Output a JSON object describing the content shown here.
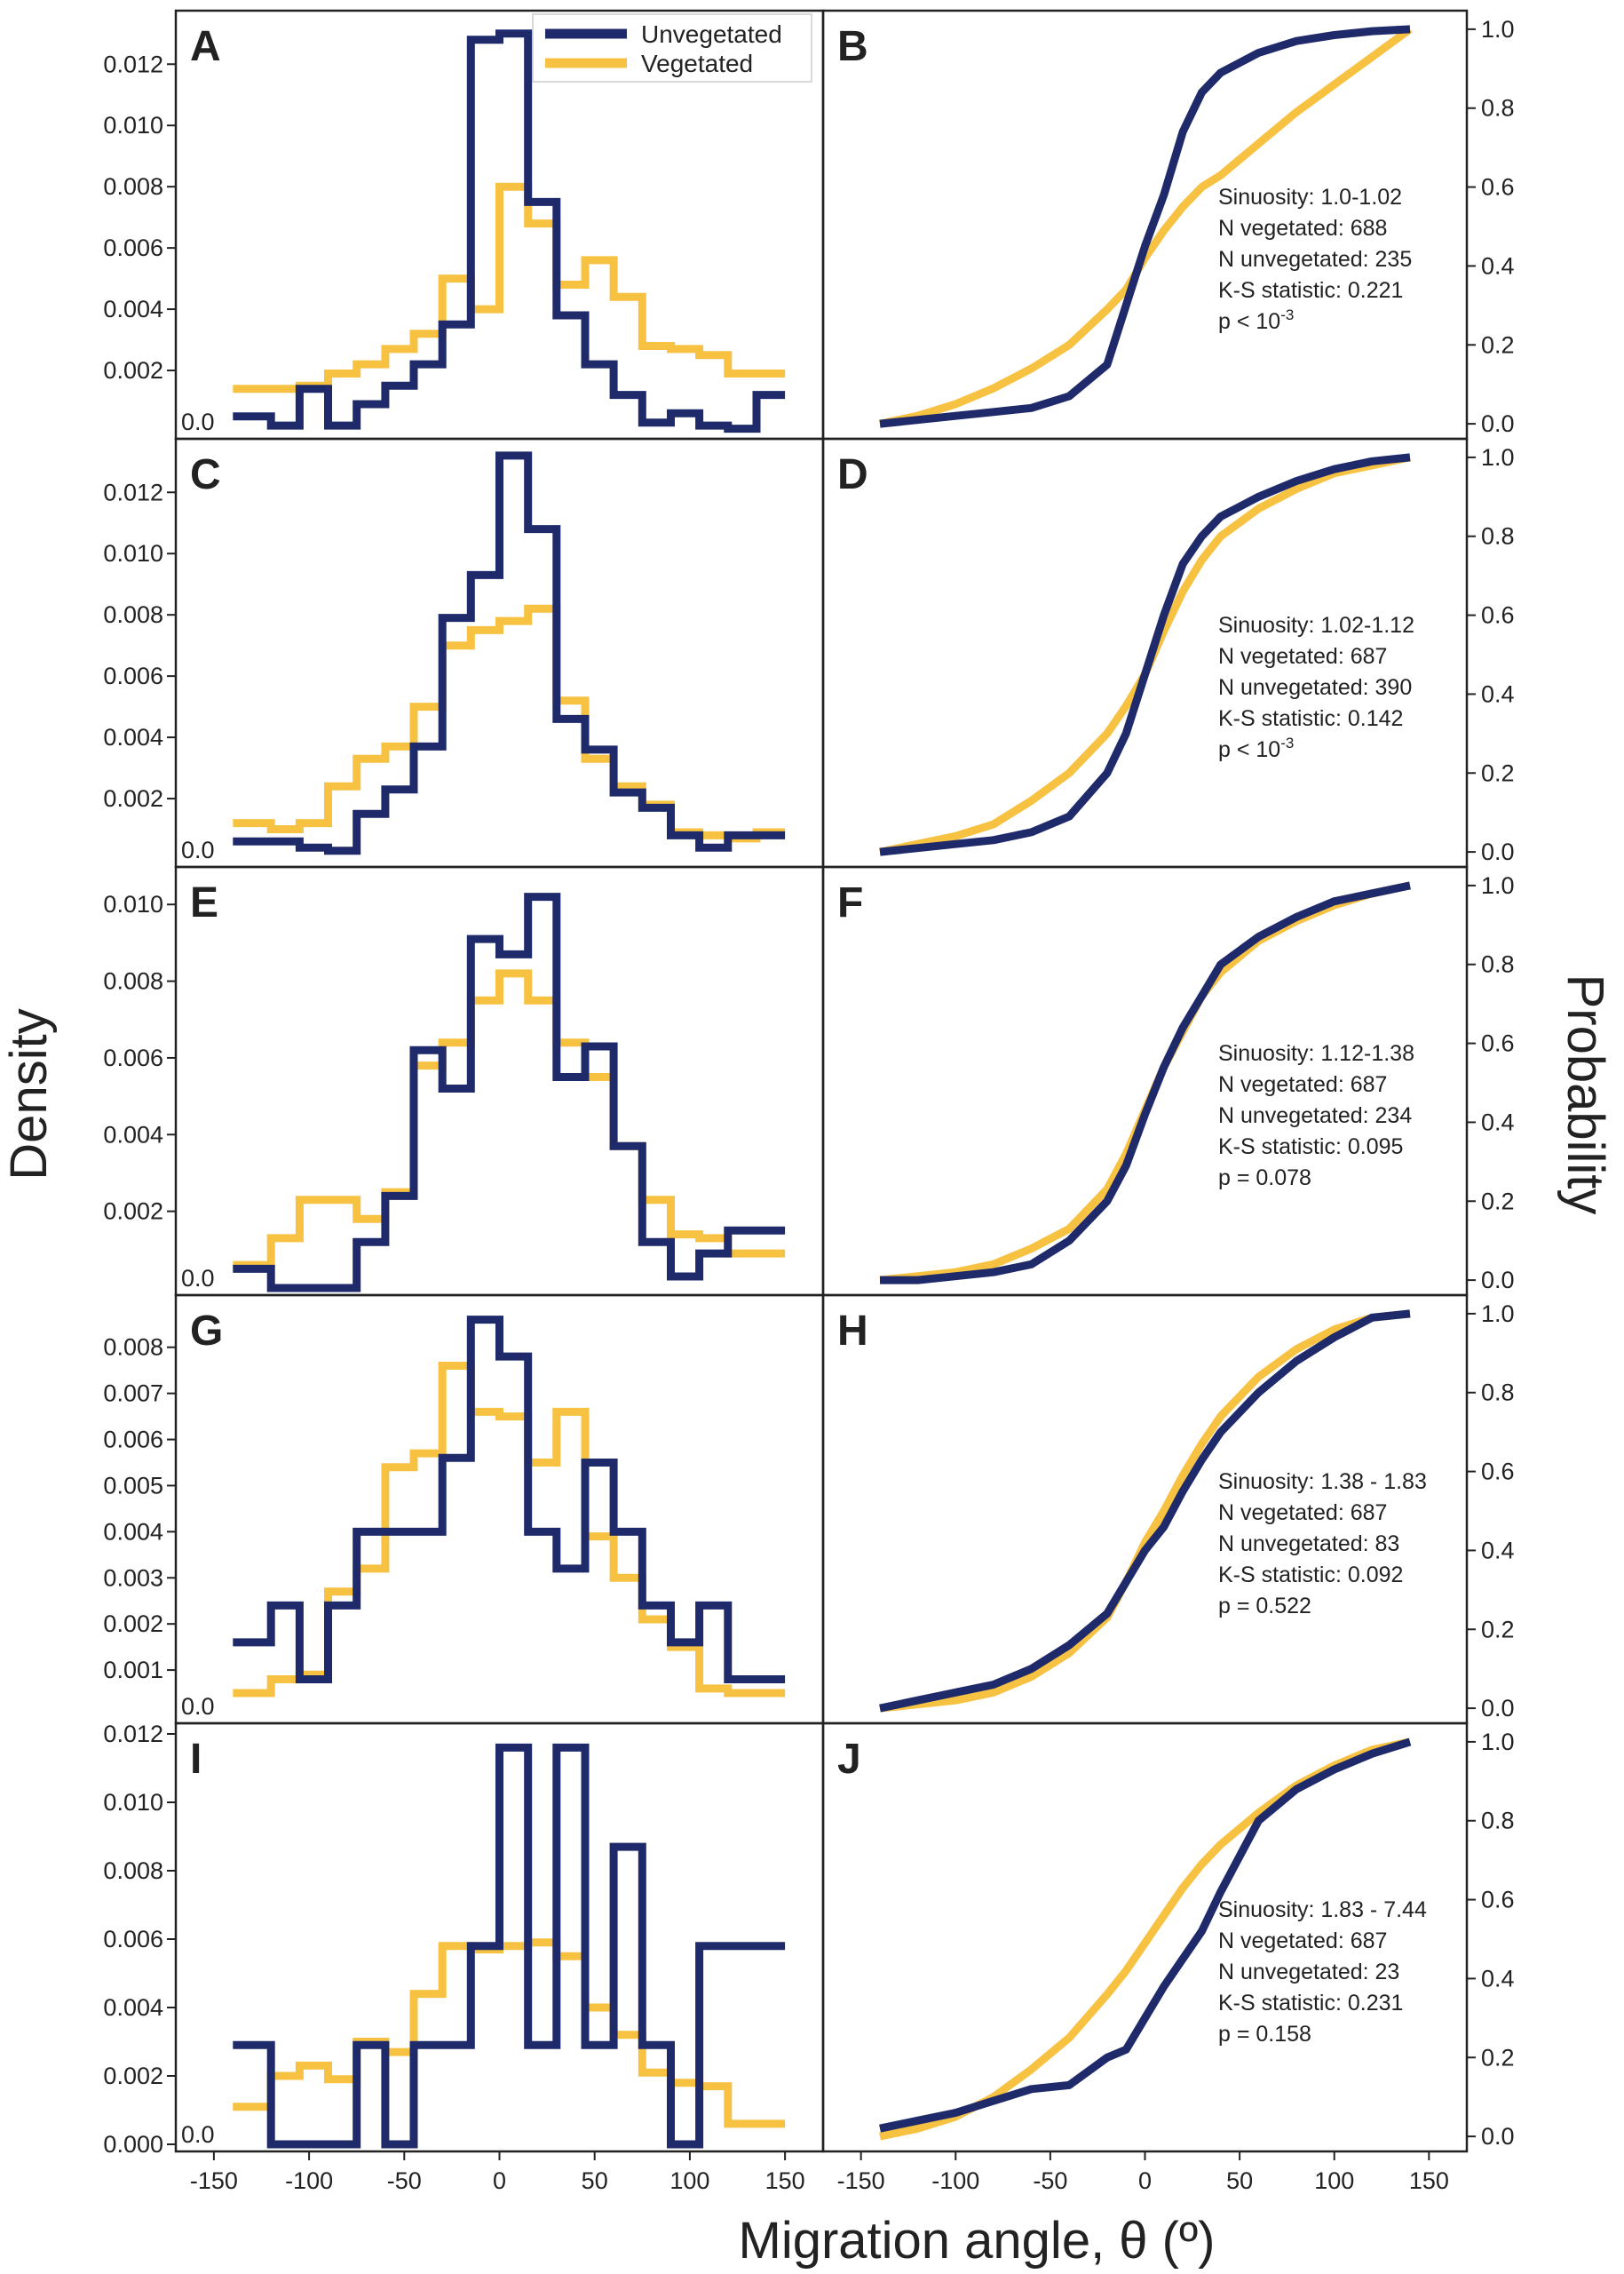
{
  "figure": {
    "y_title_left": "Density",
    "y_title_right": "Probability",
    "x_title": "Migration angle, θ (º)",
    "zero_label": "0.0",
    "x_ticks": [
      -150,
      -100,
      -50,
      0,
      50,
      100,
      150
    ],
    "prob_ticks": [
      "0.0",
      "0.2",
      "0.4",
      "0.6",
      "0.8",
      "1.0"
    ]
  },
  "legend": {
    "unvegetated": "Unvegetated",
    "vegetated": "Vegetated"
  },
  "colors": {
    "unvegetated": "#1f2a6b",
    "vegetated": "#f7c242"
  },
  "chart_data": [
    {
      "panel": "A",
      "type": "line",
      "step": true,
      "xlabel": "Migration angle, θ (º)",
      "ylabel": "Density",
      "xlim": [
        -170,
        170
      ],
      "ylim": [
        0,
        0.0134
      ],
      "yticks": [
        "0.002",
        "0.004",
        "0.006",
        "0.008",
        "0.010",
        "0.012"
      ],
      "yvalues": [
        0.002,
        0.004,
        0.006,
        0.008,
        0.01,
        0.012
      ],
      "edges": [
        -140,
        -120,
        -105,
        -90,
        -75,
        -60,
        -45,
        -30,
        -15,
        0,
        15,
        30,
        45,
        60,
        75,
        90,
        105,
        120,
        135
      ],
      "series": [
        {
          "name": "Unvegetated",
          "values": [
            0.0005,
            0.0002,
            0.0014,
            0.0002,
            0.0009,
            0.0015,
            0.0022,
            0.0035,
            0.0128,
            0.013,
            0.0075,
            0.0038,
            0.0022,
            0.0012,
            0.0003,
            0.0006,
            0.0002,
            0.0001,
            0.0012
          ]
        },
        {
          "name": "Vegetated",
          "values": [
            0.0014,
            0.0014,
            0.0015,
            0.0019,
            0.0022,
            0.0027,
            0.0032,
            0.005,
            0.004,
            0.008,
            0.0068,
            0.0048,
            0.0056,
            0.0044,
            0.0028,
            0.0027,
            0.0025,
            0.0019,
            0.0019
          ]
        }
      ]
    },
    {
      "panel": "B",
      "type": "line",
      "xlabel": "Migration angle, θ (º)",
      "ylabel": "Probability",
      "xlim": [
        -170,
        170
      ],
      "ylim": [
        -0.02,
        1.02
      ],
      "x": [
        -140,
        -120,
        -100,
        -80,
        -60,
        -40,
        -20,
        -10,
        0,
        10,
        20,
        30,
        40,
        60,
        80,
        100,
        120,
        140
      ],
      "series": [
        {
          "name": "Unvegetated",
          "values": [
            0.0,
            0.01,
            0.02,
            0.03,
            0.04,
            0.07,
            0.15,
            0.3,
            0.45,
            0.58,
            0.74,
            0.84,
            0.89,
            0.94,
            0.97,
            0.985,
            0.995,
            1.0
          ]
        },
        {
          "name": "Vegetated",
          "values": [
            0.0,
            0.02,
            0.05,
            0.09,
            0.14,
            0.2,
            0.29,
            0.34,
            0.42,
            0.49,
            0.55,
            0.6,
            0.63,
            0.71,
            0.79,
            0.86,
            0.93,
            1.0
          ]
        }
      ],
      "annotations": [
        "Sinuosity: 1.0-1.02",
        "N vegetated: 688",
        "N unvegetated: 235",
        "K-S statistic: 0.221"
      ],
      "pvalue": {
        "prefix": "p < 10",
        "exponent": "-3"
      }
    },
    {
      "panel": "C",
      "type": "line",
      "step": true,
      "xlabel": "Migration angle, θ (º)",
      "ylabel": "Density",
      "xlim": [
        -170,
        170
      ],
      "ylim": [
        0,
        0.0134
      ],
      "yticks": [
        "0.002",
        "0.004",
        "0.006",
        "0.008",
        "0.010",
        "0.012"
      ],
      "yvalues": [
        0.002,
        0.004,
        0.006,
        0.008,
        0.01,
        0.012
      ],
      "edges": [
        -140,
        -120,
        -105,
        -90,
        -75,
        -60,
        -45,
        -30,
        -15,
        0,
        15,
        30,
        45,
        60,
        75,
        90,
        105,
        120,
        135
      ],
      "series": [
        {
          "name": "Unvegetated",
          "values": [
            0.0006,
            0.0006,
            0.0004,
            0.0003,
            0.0015,
            0.0023,
            0.0037,
            0.0079,
            0.0093,
            0.0132,
            0.0108,
            0.0046,
            0.0036,
            0.0022,
            0.0017,
            0.0008,
            0.0004,
            0.0008,
            0.0008
          ]
        },
        {
          "name": "Vegetated",
          "values": [
            0.0012,
            0.001,
            0.0012,
            0.0024,
            0.0033,
            0.0037,
            0.005,
            0.007,
            0.0075,
            0.0078,
            0.0082,
            0.0052,
            0.0033,
            0.0024,
            0.0018,
            0.0009,
            0.0008,
            0.0007,
            0.0009
          ]
        }
      ]
    },
    {
      "panel": "D",
      "type": "line",
      "xlabel": "Migration angle, θ (º)",
      "ylabel": "Probability",
      "xlim": [
        -170,
        170
      ],
      "ylim": [
        -0.02,
        1.02
      ],
      "x": [
        -140,
        -120,
        -100,
        -80,
        -60,
        -40,
        -20,
        -10,
        0,
        10,
        20,
        30,
        40,
        60,
        80,
        100,
        120,
        140
      ],
      "series": [
        {
          "name": "Unvegetated",
          "values": [
            0.0,
            0.01,
            0.02,
            0.03,
            0.05,
            0.09,
            0.2,
            0.3,
            0.45,
            0.6,
            0.73,
            0.8,
            0.85,
            0.9,
            0.94,
            0.97,
            0.99,
            1.0
          ]
        },
        {
          "name": "Vegetated",
          "values": [
            0.0,
            0.02,
            0.04,
            0.07,
            0.13,
            0.2,
            0.3,
            0.37,
            0.45,
            0.56,
            0.66,
            0.74,
            0.8,
            0.87,
            0.92,
            0.96,
            0.98,
            1.0
          ]
        }
      ],
      "annotations": [
        "Sinuosity: 1.02-1.12",
        "N vegetated: 687",
        "N unvegetated: 390",
        "K-S statistic: 0.142"
      ],
      "pvalue": {
        "prefix": "p < 10",
        "exponent": "-3"
      }
    },
    {
      "panel": "E",
      "type": "line",
      "step": true,
      "xlabel": "Migration angle, θ (º)",
      "ylabel": "Density",
      "xlim": [
        -170,
        170
      ],
      "ylim": [
        0,
        0.0107
      ],
      "yticks": [
        "0.002",
        "0.004",
        "0.006",
        "0.008",
        "0.010"
      ],
      "yvalues": [
        0.002,
        0.004,
        0.006,
        0.008,
        0.01
      ],
      "edges": [
        -140,
        -120,
        -105,
        -90,
        -75,
        -60,
        -45,
        -30,
        -15,
        0,
        15,
        30,
        45,
        60,
        75,
        90,
        105,
        120,
        135
      ],
      "series": [
        {
          "name": "Unvegetated",
          "values": [
            0.0005,
            0.0,
            0.0,
            0.0,
            0.0012,
            0.0024,
            0.0062,
            0.0052,
            0.0091,
            0.0087,
            0.0102,
            0.0055,
            0.0063,
            0.0037,
            0.0012,
            0.0003,
            0.0009,
            0.0015,
            0.0015
          ]
        },
        {
          "name": "Vegetated",
          "values": [
            0.0006,
            0.0013,
            0.0023,
            0.0023,
            0.0018,
            0.0025,
            0.0058,
            0.0064,
            0.0075,
            0.0082,
            0.0075,
            0.0064,
            0.0055,
            0.0037,
            0.0023,
            0.0014,
            0.0013,
            0.0009,
            0.0009
          ]
        }
      ]
    },
    {
      "panel": "F",
      "type": "line",
      "xlabel": "Migration angle, θ (º)",
      "ylabel": "Probability",
      "xlim": [
        -170,
        170
      ],
      "ylim": [
        -0.02,
        1.02
      ],
      "x": [
        -140,
        -120,
        -100,
        -80,
        -60,
        -40,
        -20,
        -10,
        0,
        10,
        20,
        30,
        40,
        60,
        80,
        100,
        120,
        140
      ],
      "series": [
        {
          "name": "Unvegetated",
          "values": [
            0.0,
            0.0,
            0.01,
            0.02,
            0.04,
            0.1,
            0.2,
            0.29,
            0.42,
            0.54,
            0.64,
            0.72,
            0.8,
            0.87,
            0.92,
            0.96,
            0.98,
            1.0
          ]
        },
        {
          "name": "Vegetated",
          "values": [
            0.0,
            0.01,
            0.02,
            0.04,
            0.08,
            0.13,
            0.23,
            0.32,
            0.43,
            0.54,
            0.63,
            0.72,
            0.78,
            0.86,
            0.91,
            0.95,
            0.98,
            1.0
          ]
        }
      ],
      "annotations": [
        "Sinuosity: 1.12-1.38",
        "N vegetated: 687",
        "N unvegetated: 234",
        "K-S statistic: 0.095"
      ],
      "pvalue": {
        "prefix": "p = 0.078",
        "exponent": ""
      }
    },
    {
      "panel": "G",
      "type": "line",
      "step": true,
      "xlabel": "Migration angle, θ (º)",
      "ylabel": "Density",
      "xlim": [
        -170,
        170
      ],
      "ylim": [
        0,
        0.0089
      ],
      "yticks": [
        "0.001",
        "0.002",
        "0.003",
        "0.004",
        "0.005",
        "0.006",
        "0.007",
        "0.008"
      ],
      "yvalues": [
        0.001,
        0.002,
        0.003,
        0.004,
        0.005,
        0.006,
        0.007,
        0.008
      ],
      "edges": [
        -140,
        -120,
        -105,
        -90,
        -75,
        -60,
        -45,
        -30,
        -15,
        0,
        15,
        30,
        45,
        60,
        75,
        90,
        105,
        120,
        135
      ],
      "series": [
        {
          "name": "Unvegetated",
          "values": [
            0.0016,
            0.0024,
            0.0008,
            0.0024,
            0.004,
            0.004,
            0.004,
            0.0056,
            0.0086,
            0.0078,
            0.004,
            0.0032,
            0.0055,
            0.004,
            0.0024,
            0.0016,
            0.0024,
            0.0008,
            0.0008
          ]
        },
        {
          "name": "Vegetated",
          "values": [
            0.0005,
            0.0008,
            0.0009,
            0.0027,
            0.0032,
            0.0054,
            0.0057,
            0.0076,
            0.0066,
            0.0065,
            0.0055,
            0.0066,
            0.0039,
            0.003,
            0.0021,
            0.0015,
            0.0006,
            0.0005,
            0.0005
          ]
        }
      ]
    },
    {
      "panel": "H",
      "type": "line",
      "xlabel": "Migration angle, θ (º)",
      "ylabel": "Probability",
      "xlim": [
        -170,
        170
      ],
      "ylim": [
        -0.02,
        1.02
      ],
      "x": [
        -140,
        -120,
        -100,
        -80,
        -60,
        -40,
        -20,
        -10,
        0,
        10,
        20,
        30,
        40,
        60,
        80,
        100,
        120,
        140
      ],
      "series": [
        {
          "name": "Unvegetated",
          "values": [
            0.0,
            0.02,
            0.04,
            0.06,
            0.1,
            0.16,
            0.24,
            0.32,
            0.4,
            0.46,
            0.55,
            0.63,
            0.7,
            0.8,
            0.88,
            0.94,
            0.99,
            1.0
          ]
        },
        {
          "name": "Vegetated",
          "values": [
            0.0,
            0.01,
            0.02,
            0.04,
            0.08,
            0.14,
            0.23,
            0.32,
            0.42,
            0.5,
            0.59,
            0.67,
            0.74,
            0.84,
            0.91,
            0.96,
            0.99,
            1.0
          ]
        }
      ],
      "annotations": [
        "Sinuosity: 1.38 - 1.83",
        "N vegetated: 687",
        "N unvegetated: 83",
        "K-S statistic: 0.092"
      ],
      "pvalue": {
        "prefix": "p = 0.522",
        "exponent": ""
      }
    },
    {
      "panel": "I",
      "type": "line",
      "step": true,
      "xlabel": "Migration angle, θ (º)",
      "ylabel": "Density",
      "xlim": [
        -170,
        170
      ],
      "ylim": [
        0,
        0.012
      ],
      "yticks": [
        "0.000",
        "0.002",
        "0.004",
        "0.006",
        "0.008",
        "0.010",
        "0.012"
      ],
      "yvalues": [
        0.0,
        0.002,
        0.004,
        0.006,
        0.008,
        0.01,
        0.012
      ],
      "edges": [
        -140,
        -120,
        -105,
        -90,
        -75,
        -60,
        -45,
        -30,
        -15,
        0,
        15,
        30,
        45,
        60,
        75,
        90,
        105,
        120,
        135
      ],
      "series": [
        {
          "name": "Unvegetated",
          "values": [
            0.0029,
            0.0,
            0.0,
            0.0,
            0.0029,
            0.0,
            0.0029,
            0.0029,
            0.0058,
            0.0116,
            0.0029,
            0.0116,
            0.0029,
            0.0087,
            0.0029,
            0.0,
            0.0058,
            0.0058,
            0.0058
          ]
        },
        {
          "name": "Vegetated",
          "values": [
            0.0011,
            0.002,
            0.0023,
            0.0019,
            0.003,
            0.0027,
            0.0044,
            0.0058,
            0.0057,
            0.0058,
            0.0059,
            0.0055,
            0.004,
            0.0032,
            0.0021,
            0.0018,
            0.0017,
            0.0006,
            0.0006
          ]
        }
      ]
    },
    {
      "panel": "J",
      "type": "line",
      "xlabel": "Migration angle, θ (º)",
      "ylabel": "Probability",
      "xlim": [
        -170,
        170
      ],
      "ylim": [
        -0.02,
        1.02
      ],
      "x": [
        -140,
        -120,
        -100,
        -80,
        -60,
        -40,
        -20,
        -10,
        0,
        10,
        20,
        30,
        40,
        60,
        80,
        100,
        120,
        140
      ],
      "series": [
        {
          "name": "Unvegetated",
          "values": [
            0.02,
            0.04,
            0.06,
            0.09,
            0.12,
            0.13,
            0.2,
            0.22,
            0.3,
            0.38,
            0.45,
            0.52,
            0.62,
            0.8,
            0.88,
            0.93,
            0.97,
            1.0
          ]
        },
        {
          "name": "Vegetated",
          "values": [
            0.0,
            0.02,
            0.05,
            0.1,
            0.17,
            0.25,
            0.36,
            0.42,
            0.49,
            0.56,
            0.63,
            0.69,
            0.74,
            0.82,
            0.89,
            0.94,
            0.98,
            1.0
          ]
        }
      ],
      "annotations": [
        "Sinuosity: 1.83 - 7.44",
        "N vegetated: 687",
        "N unvegetated: 23",
        "K-S statistic: 0.231"
      ],
      "pvalue": {
        "prefix": "p = 0.158",
        "exponent": ""
      }
    }
  ]
}
